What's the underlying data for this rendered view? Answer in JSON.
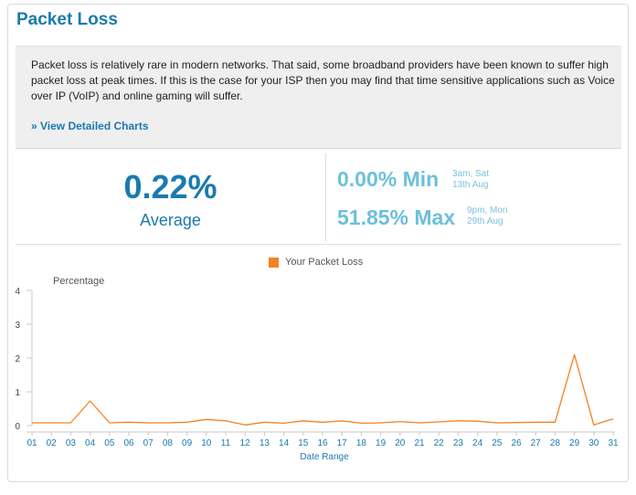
{
  "panel": {
    "title": "Packet Loss",
    "description": "Packet loss is relatively rare in modern networks. That said, some broadband providers have been known to suffer high packet loss at peak times. If this is the case for your ISP then you may find that time sensitive applications such as Voice over IP (VoIP) and online gaming will suffer.",
    "link_label": "» View Detailed Charts"
  },
  "stats": {
    "average_value": "0.22%",
    "average_label": "Average",
    "min_value": "0.00% Min",
    "min_time": "3am, Sat",
    "min_date": "13th Aug",
    "max_value": "51.85% Max",
    "max_time": "9pm, Mon",
    "max_date": "29th Aug"
  },
  "colors": {
    "accent": "#1a7ab0",
    "stat_light": "#6cc0dc",
    "series": "#f58220"
  },
  "chart_data": {
    "type": "line",
    "ylabel": "Percentage",
    "xlabel": "Date Range",
    "ylim": [
      0,
      4
    ],
    "yticks": [
      0,
      1,
      2,
      3,
      4
    ],
    "categories": [
      "01",
      "02",
      "03",
      "04",
      "05",
      "06",
      "07",
      "08",
      "09",
      "10",
      "11",
      "12",
      "13",
      "14",
      "15",
      "16",
      "17",
      "18",
      "19",
      "20",
      "21",
      "22",
      "23",
      "24",
      "25",
      "26",
      "27",
      "28",
      "29",
      "30",
      "31"
    ],
    "series": [
      {
        "name": "Your Packet Loss",
        "color": "#f58220",
        "values": [
          0.08,
          0.08,
          0.08,
          0.73,
          0.08,
          0.1,
          0.08,
          0.08,
          0.1,
          0.18,
          0.14,
          0.02,
          0.1,
          0.07,
          0.14,
          0.1,
          0.14,
          0.07,
          0.08,
          0.12,
          0.08,
          0.11,
          0.14,
          0.13,
          0.08,
          0.09,
          0.1,
          0.1,
          2.1,
          0.02,
          0.2
        ]
      }
    ],
    "legend": "top-center",
    "grid": false
  }
}
